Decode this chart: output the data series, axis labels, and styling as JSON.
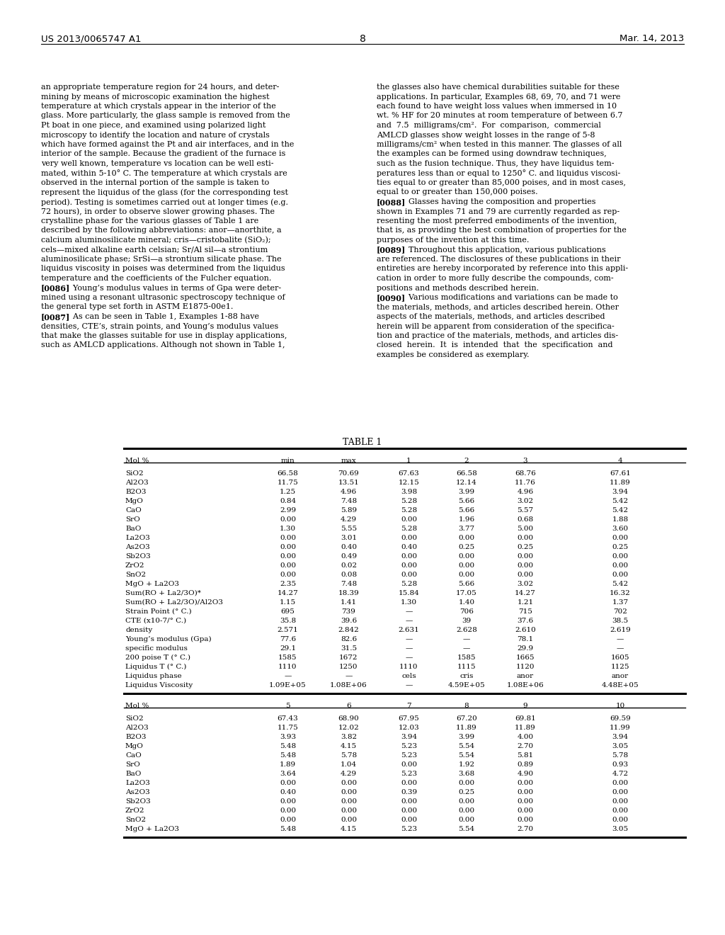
{
  "header_left": "US 2013/0065747 A1",
  "header_right": "Mar. 14, 2013",
  "page_number": "8",
  "left_col_text": [
    "an appropriate temperature region for 24 hours, and deter-",
    "mining by means of microscopic examination the highest",
    "temperature at which crystals appear in the interior of the",
    "glass. More particularly, the glass sample is removed from the",
    "Pt boat in one piece, and examined using polarized light",
    "microscopy to identify the location and nature of crystals",
    "which have formed against the Pt and air interfaces, and in the",
    "interior of the sample. Because the gradient of the furnace is",
    "very well known, temperature vs location can be well esti-",
    "mated, within 5-10° C. The temperature at which crystals are",
    "observed in the internal portion of the sample is taken to",
    "represent the liquidus of the glass (for the corresponding test",
    "period). Testing is sometimes carried out at longer times (e.g.",
    "72 hours), in order to observe slower growing phases. The",
    "crystalline phase for the various glasses of Table 1 are",
    "described by the following abbreviations: anor—anorthite, a",
    "calcium aluminosilicate mineral; cris—cristobalite (SiO₂);",
    "cels—mixed alkaline earth celsian; Sr/Al sil—a strontium",
    "aluminosilicate phase; SrSi—a strontium silicate phase. The",
    "liquidus viscosity in poises was determined from the liquidus",
    "temperature and the coefficients of the Fulcher equation.",
    "[0086]    Young’s modulus values in terms of Gpa were deter-",
    "mined using a resonant ultrasonic spectroscopy technique of",
    "the general type set forth in ASTM E1875-00e1.",
    "[0087]    As can be seen in Table 1, Examples 1-88 have",
    "densities, CTE’s, strain points, and Young’s modulus values",
    "that make the glasses suitable for use in display applications,",
    "such as AMLCD applications. Although not shown in Table 1,"
  ],
  "right_col_text": [
    "the glasses also have chemical durabilities suitable for these",
    "applications. In particular, Examples 68, 69, 70, and 71 were",
    "each found to have weight loss values when immersed in 10",
    "wt. % HF for 20 minutes at room temperature of between 6.7",
    "and  7.5  milligrams/cm².  For  comparison,  commercial",
    "AMLCD glasses show weight losses in the range of 5-8",
    "milligrams/cm² when tested in this manner. The glasses of all",
    "the examples can be formed using downdraw techniques,",
    "such as the fusion technique. Thus, they have liquidus tem-",
    "peratures less than or equal to 1250° C. and liquidus viscosi-",
    "ties equal to or greater than 85,000 poises, and in most cases,",
    "equal to or greater than 150,000 poises.",
    "[0088]    Glasses having the composition and properties",
    "shown in Examples 71 and 79 are currently regarded as rep-",
    "resenting the most preferred embodiments of the invention,",
    "that is, as providing the best combination of properties for the",
    "purposes of the invention at this time.",
    "[0089]    Throughout this application, various publications",
    "are referenced. The disclosures of these publications in their",
    "entireties are hereby incorporated by reference into this appli-",
    "cation in order to more fully describe the compounds, com-",
    "positions and methods described herein.",
    "[0090]    Various modifications and variations can be made to",
    "the materials, methods, and articles described herein. Other",
    "aspects of the materials, methods, and articles described",
    "herein will be apparent from consideration of the specifica-",
    "tion and practice of the materials, methods, and articles dis-",
    "closed  herein.  It  is  intended  that  the  specification  and",
    "examples be considered as exemplary."
  ],
  "table_title": "TABLE 1",
  "table1_headers": [
    "Mol %",
    "min",
    "max",
    "1",
    "2",
    "3",
    "4"
  ],
  "table1_rows": [
    [
      "SiO2",
      "66.58",
      "70.69",
      "67.63",
      "66.58",
      "68.76",
      "67.61"
    ],
    [
      "Al2O3",
      "11.75",
      "13.51",
      "12.15",
      "12.14",
      "11.76",
      "11.89"
    ],
    [
      "B2O3",
      "1.25",
      "4.96",
      "3.98",
      "3.99",
      "4.96",
      "3.94"
    ],
    [
      "MgO",
      "0.84",
      "7.48",
      "5.28",
      "5.66",
      "3.02",
      "5.42"
    ],
    [
      "CaO",
      "2.99",
      "5.89",
      "5.28",
      "5.66",
      "5.57",
      "5.42"
    ],
    [
      "SrO",
      "0.00",
      "4.29",
      "0.00",
      "1.96",
      "0.68",
      "1.88"
    ],
    [
      "BaO",
      "1.30",
      "5.55",
      "5.28",
      "3.77",
      "5.00",
      "3.60"
    ],
    [
      "La2O3",
      "0.00",
      "3.01",
      "0.00",
      "0.00",
      "0.00",
      "0.00"
    ],
    [
      "As2O3",
      "0.00",
      "0.40",
      "0.40",
      "0.25",
      "0.25",
      "0.25"
    ],
    [
      "Sb2O3",
      "0.00",
      "0.49",
      "0.00",
      "0.00",
      "0.00",
      "0.00"
    ],
    [
      "ZrO2",
      "0.00",
      "0.02",
      "0.00",
      "0.00",
      "0.00",
      "0.00"
    ],
    [
      "SnO2",
      "0.00",
      "0.08",
      "0.00",
      "0.00",
      "0.00",
      "0.00"
    ],
    [
      "MgO + La2O3",
      "2.35",
      "7.48",
      "5.28",
      "5.66",
      "3.02",
      "5.42"
    ],
    [
      "Sum(RO + La2/3O)*",
      "14.27",
      "18.39",
      "15.84",
      "17.05",
      "14.27",
      "16.32"
    ],
    [
      "Sum(RO + La2/3O)/Al2O3",
      "1.15",
      "1.41",
      "1.30",
      "1.40",
      "1.21",
      "1.37"
    ],
    [
      "Strain Point (° C.)",
      "695",
      "739",
      "—",
      "706",
      "715",
      "702"
    ],
    [
      "CTE (x10-7/° C.)",
      "35.8",
      "39.6",
      "—",
      "39",
      "37.6",
      "38.5"
    ],
    [
      "density",
      "2.571",
      "2.842",
      "2.631",
      "2.628",
      "2.610",
      "2.619"
    ],
    [
      "Young’s modulus (Gpa)",
      "77.6",
      "82.6",
      "—",
      "—",
      "78.1",
      "—"
    ],
    [
      "specific modulus",
      "29.1",
      "31.5",
      "—",
      "—",
      "29.9",
      "—"
    ],
    [
      "200 poise T (° C.)",
      "1585",
      "1672",
      "—",
      "1585",
      "1665",
      "1605"
    ],
    [
      "Liquidus T (° C.)",
      "1110",
      "1250",
      "1110",
      "1115",
      "1120",
      "1125"
    ],
    [
      "Liquidus phase",
      "—",
      "—",
      "cels",
      "cris",
      "anor",
      "anor"
    ],
    [
      "Liquidus Viscosity",
      "1.09E+05",
      "1.08E+06",
      "—",
      "4.59E+05",
      "1.08E+06",
      "4.48E+05"
    ]
  ],
  "table2_headers": [
    "Mol %",
    "5",
    "6",
    "7",
    "8",
    "9",
    "10"
  ],
  "table2_rows": [
    [
      "SiO2",
      "67.43",
      "68.90",
      "67.95",
      "67.20",
      "69.81",
      "69.59"
    ],
    [
      "Al2O3",
      "11.75",
      "12.02",
      "12.03",
      "11.89",
      "11.89",
      "11.99"
    ],
    [
      "B2O3",
      "3.93",
      "3.82",
      "3.94",
      "3.99",
      "4.00",
      "3.94"
    ],
    [
      "MgO",
      "5.48",
      "4.15",
      "5.23",
      "5.54",
      "2.70",
      "3.05"
    ],
    [
      "CaO",
      "5.48",
      "5.78",
      "5.23",
      "5.54",
      "5.81",
      "5.78"
    ],
    [
      "SrO",
      "1.89",
      "1.04",
      "0.00",
      "1.92",
      "0.89",
      "0.93"
    ],
    [
      "BaO",
      "3.64",
      "4.29",
      "5.23",
      "3.68",
      "4.90",
      "4.72"
    ],
    [
      "La2O3",
      "0.00",
      "0.00",
      "0.00",
      "0.00",
      "0.00",
      "0.00"
    ],
    [
      "As2O3",
      "0.40",
      "0.00",
      "0.39",
      "0.25",
      "0.00",
      "0.00"
    ],
    [
      "Sb2O3",
      "0.00",
      "0.00",
      "0.00",
      "0.00",
      "0.00",
      "0.00"
    ],
    [
      "ZrO2",
      "0.00",
      "0.00",
      "0.00",
      "0.00",
      "0.00",
      "0.00"
    ],
    [
      "SnO2",
      "0.00",
      "0.00",
      "0.00",
      "0.00",
      "0.00",
      "0.00"
    ],
    [
      "MgO + La2O3",
      "5.48",
      "4.15",
      "5.23",
      "5.54",
      "2.70",
      "3.05"
    ]
  ],
  "background_color": "#ffffff",
  "text_color": "#000000"
}
